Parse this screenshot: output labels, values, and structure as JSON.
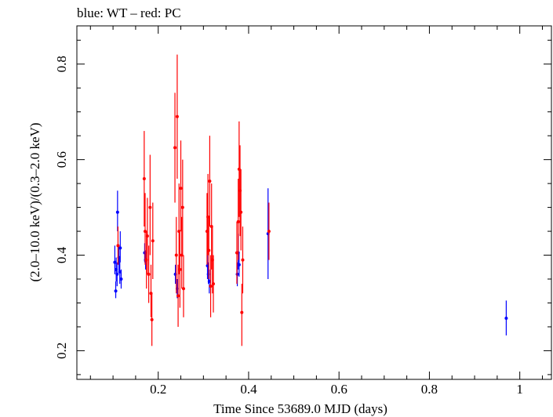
{
  "chart_data": {
    "type": "scatter",
    "title": "blue: WT – red: PC",
    "xlabel": "Time Since 53689.0 MJD (days)",
    "ylabel": "(2.0–10.0 keV)/(0.3–2.0 keV)",
    "xlim": [
      0.02,
      1.07
    ],
    "ylim": [
      0.14,
      0.88
    ],
    "x_ticks": [
      0.2,
      0.4,
      0.6,
      0.8,
      1.0
    ],
    "x_tick_labels": [
      "0.2",
      "0.4",
      "0.6",
      "0.8",
      "1"
    ],
    "y_ticks": [
      0.2,
      0.4,
      0.6,
      0.8
    ],
    "y_tick_labels": [
      "0.2",
      "0.4",
      "0.6",
      "0.8"
    ],
    "grid": false,
    "series": [
      {
        "name": "WT",
        "color": "#0000ff",
        "points": [
          {
            "x": 0.104,
            "y": 0.385,
            "lo": 0.36,
            "hi": 0.42
          },
          {
            "x": 0.106,
            "y": 0.325,
            "lo": 0.31,
            "hi": 0.345
          },
          {
            "x": 0.107,
            "y": 0.37,
            "lo": 0.345,
            "hi": 0.395
          },
          {
            "x": 0.109,
            "y": 0.36,
            "lo": 0.335,
            "hi": 0.385
          },
          {
            "x": 0.11,
            "y": 0.49,
            "lo": 0.45,
            "hi": 0.535
          },
          {
            "x": 0.113,
            "y": 0.395,
            "lo": 0.365,
            "hi": 0.42
          },
          {
            "x": 0.115,
            "y": 0.365,
            "lo": 0.34,
            "hi": 0.395
          },
          {
            "x": 0.116,
            "y": 0.415,
            "lo": 0.385,
            "hi": 0.45
          },
          {
            "x": 0.118,
            "y": 0.35,
            "lo": 0.33,
            "hi": 0.37
          },
          {
            "x": 0.17,
            "y": 0.405,
            "lo": 0.385,
            "hi": 0.425
          },
          {
            "x": 0.172,
            "y": 0.39,
            "lo": 0.37,
            "hi": 0.41
          },
          {
            "x": 0.238,
            "y": 0.36,
            "lo": 0.34,
            "hi": 0.38
          },
          {
            "x": 0.242,
            "y": 0.33,
            "lo": 0.31,
            "hi": 0.35
          },
          {
            "x": 0.309,
            "y": 0.378,
            "lo": 0.35,
            "hi": 0.41
          },
          {
            "x": 0.311,
            "y": 0.36,
            "lo": 0.34,
            "hi": 0.385
          },
          {
            "x": 0.313,
            "y": 0.345,
            "lo": 0.32,
            "hi": 0.37
          },
          {
            "x": 0.375,
            "y": 0.36,
            "lo": 0.335,
            "hi": 0.385
          },
          {
            "x": 0.377,
            "y": 0.405,
            "lo": 0.37,
            "hi": 0.445
          },
          {
            "x": 0.379,
            "y": 0.38,
            "lo": 0.355,
            "hi": 0.405
          },
          {
            "x": 0.443,
            "y": 0.445,
            "lo": 0.35,
            "hi": 0.54
          },
          {
            "x": 0.97,
            "y": 0.268,
            "lo": 0.232,
            "hi": 0.305
          }
        ]
      },
      {
        "name": "PC",
        "color": "#ff0000",
        "points": [
          {
            "x": 0.111,
            "y": 0.42,
            "lo": 0.38,
            "hi": 0.46
          },
          {
            "x": 0.169,
            "y": 0.56,
            "lo": 0.46,
            "hi": 0.66
          },
          {
            "x": 0.171,
            "y": 0.45,
            "lo": 0.38,
            "hi": 0.53
          },
          {
            "x": 0.174,
            "y": 0.39,
            "lo": 0.33,
            "hi": 0.45
          },
          {
            "x": 0.176,
            "y": 0.44,
            "lo": 0.36,
            "hi": 0.52
          },
          {
            "x": 0.179,
            "y": 0.36,
            "lo": 0.3,
            "hi": 0.42
          },
          {
            "x": 0.182,
            "y": 0.5,
            "lo": 0.4,
            "hi": 0.61
          },
          {
            "x": 0.184,
            "y": 0.32,
            "lo": 0.27,
            "hi": 0.38
          },
          {
            "x": 0.186,
            "y": 0.265,
            "lo": 0.21,
            "hi": 0.32
          },
          {
            "x": 0.188,
            "y": 0.43,
            "lo": 0.35,
            "hi": 0.51
          },
          {
            "x": 0.237,
            "y": 0.625,
            "lo": 0.51,
            "hi": 0.74
          },
          {
            "x": 0.24,
            "y": 0.4,
            "lo": 0.32,
            "hi": 0.48
          },
          {
            "x": 0.242,
            "y": 0.69,
            "lo": 0.56,
            "hi": 0.82
          },
          {
            "x": 0.244,
            "y": 0.315,
            "lo": 0.25,
            "hi": 0.38
          },
          {
            "x": 0.246,
            "y": 0.45,
            "lo": 0.36,
            "hi": 0.55
          },
          {
            "x": 0.248,
            "y": 0.37,
            "lo": 0.29,
            "hi": 0.45
          },
          {
            "x": 0.25,
            "y": 0.54,
            "lo": 0.45,
            "hi": 0.64
          },
          {
            "x": 0.252,
            "y": 0.4,
            "lo": 0.33,
            "hi": 0.48
          },
          {
            "x": 0.254,
            "y": 0.5,
            "lo": 0.4,
            "hi": 0.6
          },
          {
            "x": 0.256,
            "y": 0.33,
            "lo": 0.27,
            "hi": 0.4
          },
          {
            "x": 0.308,
            "y": 0.45,
            "lo": 0.38,
            "hi": 0.53
          },
          {
            "x": 0.31,
            "y": 0.48,
            "lo": 0.4,
            "hi": 0.57
          },
          {
            "x": 0.312,
            "y": 0.41,
            "lo": 0.35,
            "hi": 0.48
          },
          {
            "x": 0.314,
            "y": 0.555,
            "lo": 0.46,
            "hi": 0.65
          },
          {
            "x": 0.316,
            "y": 0.335,
            "lo": 0.27,
            "hi": 0.4
          },
          {
            "x": 0.318,
            "y": 0.46,
            "lo": 0.37,
            "hi": 0.55
          },
          {
            "x": 0.32,
            "y": 0.39,
            "lo": 0.32,
            "hi": 0.46
          },
          {
            "x": 0.322,
            "y": 0.34,
            "lo": 0.28,
            "hi": 0.4
          },
          {
            "x": 0.374,
            "y": 0.405,
            "lo": 0.34,
            "hi": 0.47
          },
          {
            "x": 0.377,
            "y": 0.47,
            "lo": 0.39,
            "hi": 0.56
          },
          {
            "x": 0.379,
            "y": 0.58,
            "lo": 0.48,
            "hi": 0.68
          },
          {
            "x": 0.381,
            "y": 0.535,
            "lo": 0.44,
            "hi": 0.63
          },
          {
            "x": 0.383,
            "y": 0.49,
            "lo": 0.41,
            "hi": 0.58
          },
          {
            "x": 0.385,
            "y": 0.28,
            "lo": 0.21,
            "hi": 0.34
          },
          {
            "x": 0.387,
            "y": 0.39,
            "lo": 0.32,
            "hi": 0.46
          },
          {
            "x": 0.445,
            "y": 0.45,
            "lo": 0.39,
            "hi": 0.51
          }
        ]
      }
    ]
  }
}
